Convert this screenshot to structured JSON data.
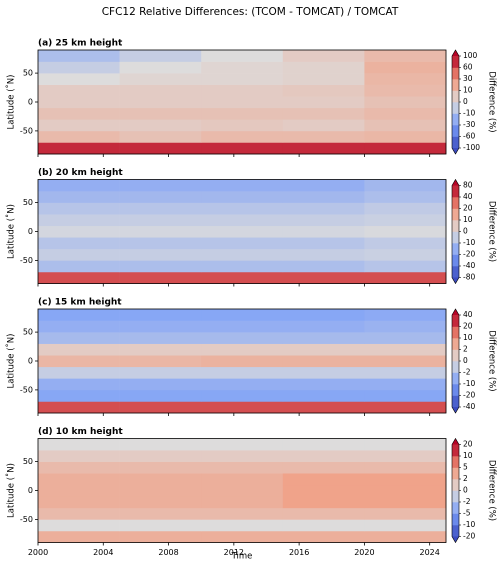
{
  "title": "CFC12 Relative Differences: (TCOM - TOMCAT) / TOMCAT",
  "x_label": "Time",
  "chart_data": [
    {
      "type": "heatmap",
      "title": "(a) 25 km height",
      "y_label": "Latitude (˚N)",
      "colorbar_label": "Difference (%)",
      "xbins": [
        2000,
        2005,
        2010,
        2015,
        2020,
        2025
      ],
      "ybins": [
        -90,
        -70,
        -50,
        -30,
        -10,
        10,
        30,
        50,
        70,
        90
      ],
      "z": [
        [
          80,
          80,
          80,
          80,
          80
        ],
        [
          10,
          8,
          10,
          10,
          12
        ],
        [
          5,
          5,
          6,
          5,
          8
        ],
        [
          8,
          8,
          8,
          8,
          10
        ],
        [
          5,
          5,
          5,
          5,
          8
        ],
        [
          5,
          5,
          5,
          6,
          10
        ],
        [
          0,
          2,
          2,
          3,
          12
        ],
        [
          -5,
          0,
          2,
          3,
          15
        ],
        [
          -10,
          -5,
          0,
          5,
          10
        ]
      ],
      "xlim": [
        2000,
        2025
      ],
      "ylim": [
        -90,
        90
      ],
      "xticks": [
        2000,
        2004,
        2008,
        2012,
        2016,
        2020,
        2024
      ],
      "yticks": [
        -50,
        0,
        50
      ],
      "cticks": [
        -100,
        -60,
        -30,
        -10,
        0,
        10,
        30,
        60,
        100
      ]
    },
    {
      "type": "heatmap",
      "title": "(b) 20 km height",
      "y_label": "Latitude (˚N)",
      "colorbar_label": "Difference (%)",
      "xbins": [
        2000,
        2005,
        2010,
        2015,
        2020,
        2025
      ],
      "ybins": [
        -90,
        -70,
        -50,
        -30,
        -10,
        10,
        30,
        50,
        70,
        90
      ],
      "z": [
        [
          40,
          40,
          40,
          40,
          40
        ],
        [
          -10,
          -10,
          -10,
          -10,
          -8
        ],
        [
          -5,
          -5,
          -5,
          -5,
          -4
        ],
        [
          -8,
          -8,
          -8,
          -8,
          -6
        ],
        [
          -2,
          -2,
          -2,
          -2,
          -1
        ],
        [
          -5,
          -5,
          -5,
          -5,
          -4
        ],
        [
          -8,
          -8,
          -8,
          -8,
          -6
        ],
        [
          -12,
          -12,
          -12,
          -12,
          -10
        ],
        [
          -15,
          -15,
          -15,
          -15,
          -12
        ]
      ],
      "xlim": [
        2000,
        2025
      ],
      "ylim": [
        -90,
        90
      ],
      "xticks": [
        2000,
        2004,
        2008,
        2012,
        2016,
        2020,
        2024
      ],
      "yticks": [
        -50,
        0,
        50
      ],
      "cticks": [
        -80,
        -40,
        -20,
        -10,
        0,
        10,
        20,
        40,
        80
      ]
    },
    {
      "type": "heatmap",
      "title": "(c) 15 km height",
      "y_label": "Latitude (˚N)",
      "colorbar_label": "Difference (%)",
      "xbins": [
        2000,
        2005,
        2010,
        2015,
        2020,
        2025
      ],
      "ybins": [
        -90,
        -70,
        -50,
        -30,
        -10,
        10,
        30,
        50,
        70,
        90
      ],
      "z": [
        [
          20,
          20,
          20,
          20,
          20
        ],
        [
          -8,
          -8,
          -8,
          -8,
          -8
        ],
        [
          -6,
          -6,
          -6,
          -6,
          -6
        ],
        [
          -1,
          -1,
          -1,
          -1,
          -1
        ],
        [
          3,
          3,
          4,
          4,
          4
        ],
        [
          1,
          1,
          1,
          1,
          1
        ],
        [
          -3,
          -3,
          -3,
          -3,
          -3
        ],
        [
          -6,
          -6,
          -6,
          -6,
          -5
        ],
        [
          -8,
          -8,
          -8,
          -8,
          -7
        ]
      ],
      "xlim": [
        2000,
        2025
      ],
      "ylim": [
        -90,
        90
      ],
      "xticks": [
        2000,
        2004,
        2008,
        2012,
        2016,
        2020,
        2024
      ],
      "yticks": [
        -50,
        0,
        50
      ],
      "cticks": [
        -40,
        -20,
        -10,
        -2,
        0,
        2,
        10,
        20,
        40
      ]
    },
    {
      "type": "heatmap",
      "title": "(d) 10 km height",
      "y_label": "Latitude (˚N)",
      "colorbar_label": "Difference (%)",
      "xbins": [
        2000,
        2005,
        2010,
        2015,
        2020,
        2025
      ],
      "ybins": [
        -90,
        -70,
        -50,
        -30,
        -10,
        10,
        30,
        50,
        70,
        90
      ],
      "z": [
        [
          3,
          3,
          3,
          3,
          3
        ],
        [
          0,
          0,
          0,
          0,
          0
        ],
        [
          2,
          2,
          2,
          2,
          2
        ],
        [
          3,
          3,
          3,
          4,
          4
        ],
        [
          3,
          3,
          3,
          4,
          4
        ],
        [
          3,
          3,
          3,
          4,
          4
        ],
        [
          2,
          2,
          2,
          2,
          2
        ],
        [
          1,
          1,
          1,
          1,
          1
        ],
        [
          0,
          0,
          0,
          0,
          0
        ]
      ],
      "xlim": [
        2000,
        2025
      ],
      "ylim": [
        -90,
        90
      ],
      "xticks": [
        2000,
        2004,
        2008,
        2012,
        2016,
        2020,
        2024
      ],
      "yticks": [
        -50,
        0,
        50
      ],
      "cticks": [
        -20,
        -10,
        -5,
        -2,
        0,
        2,
        5,
        10,
        20
      ]
    }
  ]
}
